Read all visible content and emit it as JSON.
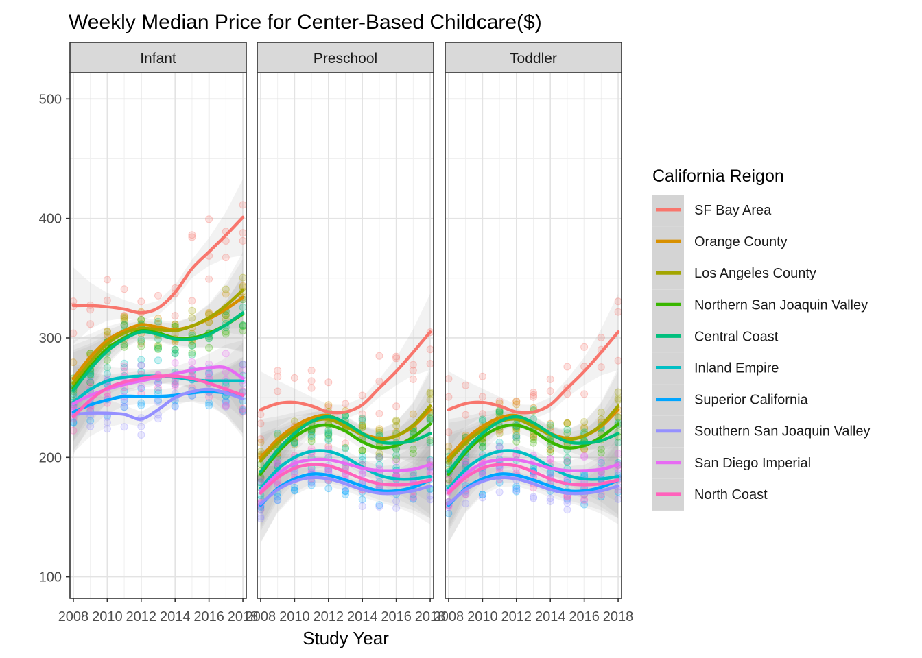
{
  "chart_data": {
    "type": "scatter",
    "title": "Weekly Median Price for Center-Based Childcare($)",
    "xlabel": "Study Year",
    "ylabel": "",
    "facets": [
      "Infant",
      "Preschool",
      "Toddler"
    ],
    "xlim": [
      2007.8,
      2018.2
    ],
    "ylim": [
      82,
      522
    ],
    "x_ticks": [
      2008,
      2010,
      2012,
      2014,
      2016,
      2018
    ],
    "y_ticks": [
      100,
      200,
      300,
      400,
      500
    ],
    "legend": {
      "title": "California Reigon",
      "position": "right"
    },
    "overlay": "loess smooth line with grey confidence band, points semi-transparent",
    "x": [
      2008,
      2009,
      2010,
      2011,
      2012,
      2013,
      2014,
      2015,
      2016,
      2017,
      2018
    ],
    "series": [
      {
        "name": "SF Bay Area",
        "color": "#F8766D",
        "Infant": [
          327,
          327,
          326,
          324,
          321,
          325,
          338,
          358,
          372,
          386,
          401
        ],
        "Preschool": [
          240,
          245,
          246,
          243,
          238,
          238,
          244,
          258,
          272,
          288,
          305
        ],
        "Toddler": [
          240,
          245,
          246,
          243,
          238,
          238,
          244,
          258,
          272,
          288,
          305
        ]
      },
      {
        "name": "Orange County",
        "color": "#D89000",
        "Infant": [
          266,
          284,
          298,
          306,
          311,
          309,
          307,
          310,
          316,
          324,
          334
        ],
        "Preschool": [
          200,
          215,
          226,
          233,
          235,
          228,
          220,
          216,
          218,
          226,
          240
        ],
        "Toddler": [
          200,
          215,
          226,
          233,
          235,
          228,
          220,
          216,
          218,
          226,
          240
        ]
      },
      {
        "name": "Los Angeles County",
        "color": "#A3A500",
        "Infant": [
          262,
          280,
          295,
          304,
          308,
          307,
          306,
          310,
          317,
          327,
          340
        ],
        "Preschool": [
          197,
          212,
          223,
          230,
          232,
          226,
          219,
          215,
          218,
          227,
          243
        ],
        "Toddler": [
          197,
          212,
          223,
          230,
          232,
          226,
          219,
          215,
          218,
          227,
          243
        ]
      },
      {
        "name": "Northern San Joaquin Valley",
        "color": "#39B600",
        "Infant": [
          258,
          276,
          291,
          300,
          306,
          304,
          300,
          300,
          304,
          311,
          320
        ],
        "Preschool": [
          186,
          204,
          217,
          225,
          227,
          222,
          213,
          208,
          210,
          217,
          228
        ],
        "Toddler": [
          186,
          204,
          217,
          225,
          227,
          222,
          213,
          208,
          210,
          217,
          228
        ]
      },
      {
        "name": "Central Coast",
        "color": "#00BF7D",
        "Infant": [
          256,
          274,
          289,
          299,
          305,
          303,
          299,
          299,
          303,
          311,
          321
        ],
        "Preschool": [
          188,
          206,
          220,
          230,
          234,
          229,
          220,
          213,
          212,
          214,
          220
        ],
        "Toddler": [
          188,
          206,
          220,
          230,
          234,
          229,
          220,
          213,
          212,
          214,
          220
        ]
      },
      {
        "name": "Inland Empire",
        "color": "#00BFC4",
        "Infant": [
          246,
          257,
          264,
          267,
          268,
          268,
          267,
          265,
          264,
          264,
          264
        ],
        "Preschool": [
          174,
          190,
          200,
          205,
          205,
          200,
          192,
          185,
          182,
          182,
          184
        ],
        "Toddler": [
          174,
          190,
          200,
          205,
          205,
          200,
          192,
          185,
          182,
          182,
          184
        ]
      },
      {
        "name": "Superior California",
        "color": "#00A5FF",
        "Infant": [
          238,
          244,
          248,
          251,
          251,
          251,
          252,
          254,
          255,
          254,
          252
        ],
        "Preschool": [
          160,
          174,
          182,
          186,
          185,
          181,
          176,
          172,
          172,
          175,
          181
        ],
        "Toddler": [
          160,
          174,
          182,
          186,
          185,
          181,
          176,
          172,
          172,
          175,
          181
        ]
      },
      {
        "name": "Southern San Joaquin Valley",
        "color": "#9590FF",
        "Infant": [
          236,
          237,
          237,
          236,
          232,
          240,
          250,
          255,
          257,
          254,
          249
        ],
        "Preschool": [
          161,
          173,
          180,
          183,
          182,
          178,
          173,
          170,
          170,
          172,
          176
        ],
        "Toddler": [
          161,
          173,
          180,
          183,
          182,
          178,
          173,
          170,
          170,
          172,
          176
        ]
      },
      {
        "name": "San Diego Imperial",
        "color": "#E76BF3",
        "Infant": [
          245,
          252,
          257,
          261,
          264,
          267,
          270,
          273,
          275,
          275,
          266
        ],
        "Preschool": [
          172,
          186,
          195,
          198,
          198,
          195,
          191,
          189,
          189,
          190,
          194
        ],
        "Toddler": [
          172,
          186,
          195,
          198,
          198,
          195,
          191,
          189,
          189,
          190,
          194
        ]
      },
      {
        "name": "North Coast",
        "color": "#FF62BC",
        "Infant": [
          234,
          248,
          258,
          263,
          266,
          268,
          268,
          266,
          262,
          257,
          252
        ],
        "Preschool": [
          170,
          183,
          191,
          194,
          193,
          188,
          182,
          178,
          177,
          178,
          181
        ],
        "Toddler": [
          170,
          183,
          191,
          194,
          193,
          188,
          182,
          178,
          177,
          178,
          181
        ]
      }
    ]
  }
}
